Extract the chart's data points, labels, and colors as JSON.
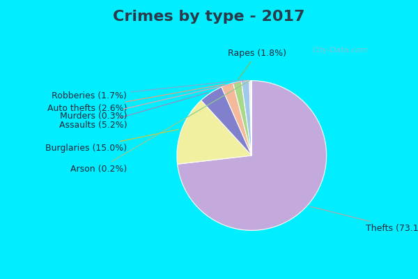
{
  "title": "Crimes by type - 2017",
  "slices": [
    {
      "label": "Thefts",
      "pct": 73.1,
      "color": "#C4AADC"
    },
    {
      "label": "Burglaries",
      "pct": 15.0,
      "color": "#F0F0A0"
    },
    {
      "label": "Assaults",
      "pct": 5.2,
      "color": "#8080CC"
    },
    {
      "label": "Auto thefts",
      "pct": 2.6,
      "color": "#F4B89A"
    },
    {
      "label": "Rapes",
      "pct": 1.8,
      "color": "#A8D888"
    },
    {
      "label": "Robberies",
      "pct": 1.7,
      "color": "#A0C8E8"
    },
    {
      "label": "Murders",
      "pct": 0.3,
      "color": "#F8C0CC"
    },
    {
      "label": "Arson",
      "pct": 0.2,
      "color": "#B8E8B8"
    }
  ],
  "cyan_border": "#00EEFF",
  "inner_bg": "#D8EED8",
  "title_color": "#2A3A4A",
  "title_fontsize": 16,
  "label_fontsize": 9,
  "watermark": "City-Data.com",
  "border_size": 8
}
